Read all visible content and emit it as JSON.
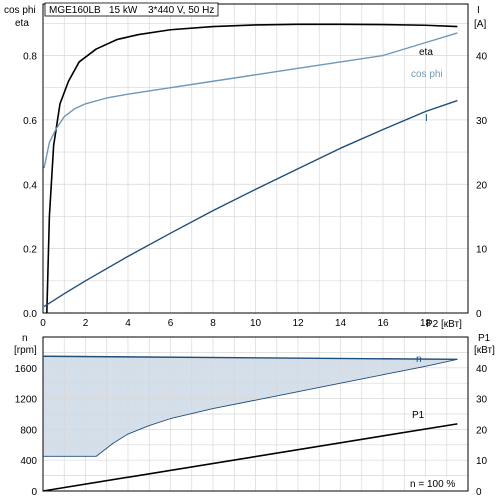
{
  "header": {
    "model": "MGE160LB",
    "power": "15 kW",
    "voltage": "3*440 V, 50 Hz"
  },
  "footer_note": "n = 100 %",
  "chart_data": [
    {
      "type": "line",
      "x_axis": {
        "label": "P2 [кВт]",
        "range": [
          0,
          20
        ],
        "ticks": [
          0,
          2,
          4,
          6,
          8,
          10,
          12,
          14,
          16,
          18
        ]
      },
      "left_axis": {
        "label_top": "cos phi",
        "label_bottom": "eta",
        "range": [
          0,
          0.96
        ],
        "ticks": [
          0.0,
          0.2,
          0.4,
          0.6,
          0.8
        ]
      },
      "right_axis": {
        "label_top": "I",
        "label_bottom": "[A]",
        "range": [
          0,
          48
        ],
        "ticks": [
          0,
          10,
          20,
          30,
          40
        ]
      },
      "grid": true,
      "series": [
        {
          "name": "eta",
          "axis": "left",
          "color": "#000000",
          "x": [
            0.18,
            0.3,
            0.5,
            0.8,
            1.2,
            1.7,
            2.5,
            3.5,
            4.5,
            6,
            8,
            10,
            12,
            14,
            16,
            18,
            19.5
          ],
          "y": [
            0.0,
            0.3,
            0.52,
            0.65,
            0.72,
            0.78,
            0.82,
            0.85,
            0.865,
            0.88,
            0.89,
            0.895,
            0.897,
            0.897,
            0.896,
            0.894,
            0.89
          ]
        },
        {
          "name": "cos phi",
          "axis": "left",
          "color": "#6f98b8",
          "x": [
            0.05,
            0.3,
            0.6,
            1,
            1.5,
            2,
            3,
            4,
            5,
            6,
            8,
            10,
            12,
            14,
            16,
            18,
            19.5
          ],
          "y": [
            0.45,
            0.53,
            0.57,
            0.61,
            0.635,
            0.65,
            0.668,
            0.68,
            0.69,
            0.7,
            0.72,
            0.74,
            0.76,
            0.78,
            0.8,
            0.84,
            0.87
          ]
        },
        {
          "name": "I",
          "axis": "right",
          "color": "#1f4e79",
          "x": [
            0.05,
            1,
            2,
            4,
            6,
            8,
            10,
            12,
            14,
            16,
            18,
            19.5
          ],
          "y": [
            1.0,
            3.0,
            5.0,
            8.8,
            12.4,
            15.9,
            19.2,
            22.4,
            25.6,
            28.5,
            31.3,
            33.0
          ]
        }
      ]
    },
    {
      "type": "area",
      "x_axis": {
        "range": [
          0,
          20
        ],
        "ticks": [
          0,
          2,
          4,
          6,
          8,
          10,
          12,
          14,
          16,
          18
        ]
      },
      "left_axis": {
        "label_top": "n",
        "label_bottom": "[rpm]",
        "range": [
          0,
          2000
        ],
        "ticks": [
          0,
          400,
          800,
          1200,
          1600
        ]
      },
      "right_axis": {
        "label_top": "P1",
        "label_bottom": "[кВт]",
        "range": [
          0,
          50
        ],
        "ticks": [
          0,
          10,
          20,
          30,
          40
        ]
      },
      "grid": true,
      "series": [
        {
          "name": "n",
          "axis": "left",
          "color": "#1f4e79",
          "x": [
            0,
            19.5
          ],
          "y": [
            1750,
            1710
          ]
        },
        {
          "name": "",
          "axis": "left",
          "color": "#1f4e79",
          "x": [
            0,
            2.5,
            3.3,
            4,
            5,
            6,
            8,
            10,
            12,
            14,
            16,
            18,
            19.5
          ],
          "y": [
            450,
            450,
            620,
            740,
            850,
            940,
            1070,
            1180,
            1290,
            1400,
            1510,
            1620,
            1710
          ]
        },
        {
          "name": "P1",
          "axis": "right",
          "color": "#000000",
          "x": [
            0,
            19.5
          ],
          "y": [
            0,
            21.8
          ]
        }
      ],
      "fill_region": {
        "color": "#d5dfea",
        "between": [
          "n",
          "min-speed"
        ]
      }
    }
  ]
}
